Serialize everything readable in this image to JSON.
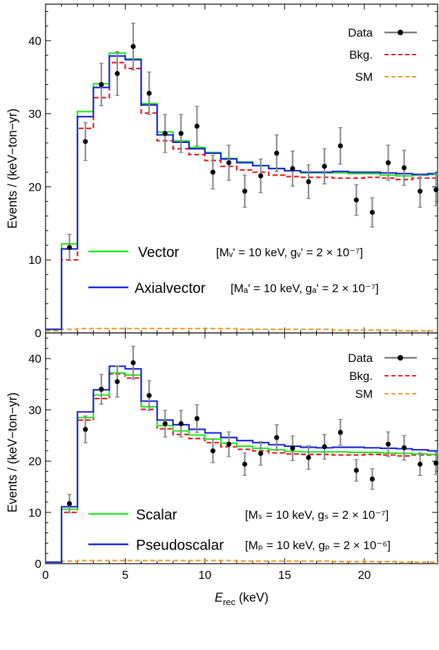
{
  "chart_data": [
    {
      "type": "line",
      "panel": "top",
      "ylabel": "Events / (keV−ton−yr)",
      "xlim": [
        0,
        24.6
      ],
      "ylim": [
        0,
        45
      ],
      "xticks": [],
      "yticks": [
        0,
        10,
        20,
        30,
        40
      ],
      "data_legend": {
        "data": "Data",
        "bkg": "Bkg.",
        "sm": "SM"
      },
      "model_legend": [
        {
          "name": "Vector",
          "params": "[Mᵥ' = 10 keV,  gᵥ' = 2 × 10⁻⁷]"
        },
        {
          "name": "Axialvector",
          "params": "[Mₐ' = 10 keV,  gₐ' = 2 × 10⁻⁷]"
        }
      ],
      "data_points": {
        "x": [
          1.5,
          2.5,
          3.5,
          4.5,
          5.5,
          6.5,
          7.5,
          8.5,
          9.5,
          10.5,
          11.5,
          12.5,
          13.5,
          14.5,
          15.5,
          16.5,
          17.5,
          18.5,
          19.5,
          20.5,
          21.5,
          22.5,
          23.5,
          24.5
        ],
        "y": [
          11.7,
          26.2,
          34.0,
          35.5,
          39.2,
          32.8,
          27.3,
          27.3,
          28.3,
          22.0,
          23.3,
          19.4,
          21.5,
          24.6,
          22.5,
          20.7,
          22.8,
          25.6,
          18.2,
          16.5,
          23.3,
          22.6,
          19.4,
          19.6
        ],
        "err": [
          1.8,
          2.6,
          2.9,
          3.0,
          3.2,
          2.9,
          2.6,
          2.6,
          2.7,
          2.3,
          2.4,
          2.2,
          2.3,
          2.5,
          2.4,
          2.3,
          2.4,
          2.5,
          2.1,
          2.0,
          2.4,
          2.4,
          2.2,
          2.2
        ]
      },
      "bin_edges": [
        0,
        1,
        2,
        3,
        4,
        5,
        6,
        7,
        8,
        9,
        10,
        11,
        12,
        13,
        14,
        15,
        16,
        17,
        18,
        19,
        20,
        21,
        22,
        23,
        24,
        25
      ],
      "series": [
        {
          "key": "bkg",
          "color": "#e8161a",
          "dash": true,
          "values": [
            0.3,
            10.0,
            28.0,
            32.2,
            37.0,
            36.2,
            30.1,
            26.3,
            25.2,
            24.4,
            23.6,
            22.8,
            22.3,
            22.0,
            21.6,
            21.4,
            21.3,
            21.3,
            21.2,
            21.2,
            21.3,
            21.2,
            21.0,
            21.2,
            21.2
          ]
        },
        {
          "key": "sm",
          "color": "#f39325",
          "dash": true,
          "values": [
            0.3,
            0.5,
            0.6,
            0.6,
            0.6,
            0.6,
            0.6,
            0.6,
            0.6,
            0.6,
            0.6,
            0.6,
            0.5,
            0.5,
            0.5,
            0.5,
            0.5,
            0.5,
            0.4,
            0.4,
            0.4,
            0.4,
            0.3,
            0.3,
            0.3
          ]
        },
        {
          "key": "Vector",
          "color": "#22e622",
          "dash": false,
          "values": [
            0.5,
            12.2,
            30.3,
            34.1,
            38.3,
            37.5,
            31.4,
            27.5,
            26.3,
            25.4,
            24.7,
            23.9,
            23.4,
            22.9,
            22.5,
            22.2,
            21.9,
            21.9,
            21.9,
            21.8,
            21.8,
            21.6,
            21.5,
            21.6,
            21.7
          ]
        },
        {
          "key": "Axialvector",
          "color": "#1622d8",
          "dash": false,
          "values": [
            0.5,
            11.5,
            29.6,
            33.6,
            37.9,
            37.4,
            31.2,
            27.1,
            26.1,
            25.2,
            24.6,
            23.8,
            23.3,
            22.9,
            22.5,
            22.2,
            22.0,
            22.0,
            22.1,
            22.0,
            22.0,
            21.9,
            21.8,
            21.7,
            21.8
          ]
        }
      ]
    },
    {
      "type": "line",
      "panel": "bottom",
      "xlabel": "E_rec (keV)",
      "xlabel_main": "E",
      "xlabel_sub": "rec",
      "xlabel_unit": " (keV)",
      "ylabel": "Events / (keV−ton−yr)",
      "xlim": [
        0,
        24.6
      ],
      "ylim": [
        0,
        45
      ],
      "xticks": [
        0,
        5,
        10,
        15,
        20
      ],
      "yticks": [
        0,
        10,
        20,
        30,
        40
      ],
      "data_legend": {
        "data": "Data",
        "bkg": "Bkg.",
        "sm": "SM"
      },
      "model_legend": [
        {
          "name": "Scalar",
          "params": "[Mₛ = 10 keV,  gₛ = 2 × 10⁻⁷]"
        },
        {
          "name": "Pseudoscalar",
          "params": "[Mₚ = 10 keV,  gₚ = 2 × 10⁻⁶]"
        }
      ],
      "data_points": {
        "x": [
          1.5,
          2.5,
          3.5,
          4.5,
          5.5,
          6.5,
          7.5,
          8.5,
          9.5,
          10.5,
          11.5,
          12.5,
          13.5,
          14.5,
          15.5,
          16.5,
          17.5,
          18.5,
          19.5,
          20.5,
          21.5,
          22.5,
          23.5,
          24.5
        ],
        "y": [
          11.7,
          26.2,
          34.0,
          35.5,
          39.2,
          32.8,
          27.3,
          27.3,
          28.3,
          22.0,
          23.3,
          19.4,
          21.5,
          24.6,
          22.5,
          20.7,
          22.8,
          25.6,
          18.2,
          16.5,
          23.3,
          22.6,
          19.4,
          19.6
        ],
        "err": [
          1.8,
          2.6,
          2.9,
          3.0,
          3.2,
          2.9,
          2.6,
          2.6,
          2.7,
          2.3,
          2.4,
          2.2,
          2.3,
          2.5,
          2.4,
          2.3,
          2.4,
          2.5,
          2.1,
          2.0,
          2.4,
          2.4,
          2.2,
          2.2
        ]
      },
      "bin_edges": [
        0,
        1,
        2,
        3,
        4,
        5,
        6,
        7,
        8,
        9,
        10,
        11,
        12,
        13,
        14,
        15,
        16,
        17,
        18,
        19,
        20,
        21,
        22,
        23,
        24,
        25
      ],
      "series": [
        {
          "key": "bkg",
          "color": "#e8161a",
          "dash": true,
          "values": [
            0.3,
            10.0,
            28.0,
            32.2,
            37.0,
            36.2,
            30.1,
            26.3,
            25.2,
            24.4,
            23.6,
            22.8,
            22.3,
            22.0,
            21.6,
            21.4,
            21.3,
            21.3,
            21.2,
            21.2,
            21.3,
            21.2,
            21.0,
            21.2,
            21.2
          ]
        },
        {
          "key": "sm",
          "color": "#f39325",
          "dash": true,
          "values": [
            0.3,
            0.5,
            0.6,
            0.6,
            0.6,
            0.6,
            0.6,
            0.6,
            0.6,
            0.6,
            0.6,
            0.6,
            0.5,
            0.5,
            0.5,
            0.5,
            0.5,
            0.5,
            0.4,
            0.4,
            0.4,
            0.4,
            0.3,
            0.3,
            0.3
          ]
        },
        {
          "key": "Scalar",
          "color": "#22e622",
          "dash": false,
          "values": [
            0.3,
            10.6,
            28.5,
            32.9,
            37.2,
            36.8,
            30.6,
            26.9,
            25.9,
            25.1,
            24.3,
            23.5,
            22.9,
            22.5,
            22.2,
            21.9,
            21.8,
            21.8,
            21.8,
            21.7,
            21.7,
            21.6,
            21.5,
            21.4,
            21.3
          ]
        },
        {
          "key": "Pseudoscalar",
          "color": "#1622d8",
          "dash": false,
          "values": [
            0.3,
            11.1,
            29.6,
            33.9,
            38.5,
            38.0,
            31.7,
            28.0,
            27.1,
            26.2,
            25.5,
            24.6,
            24.0,
            23.6,
            23.2,
            22.9,
            22.7,
            22.6,
            22.7,
            22.7,
            22.6,
            22.5,
            22.4,
            22.2,
            22.0
          ]
        }
      ]
    }
  ]
}
